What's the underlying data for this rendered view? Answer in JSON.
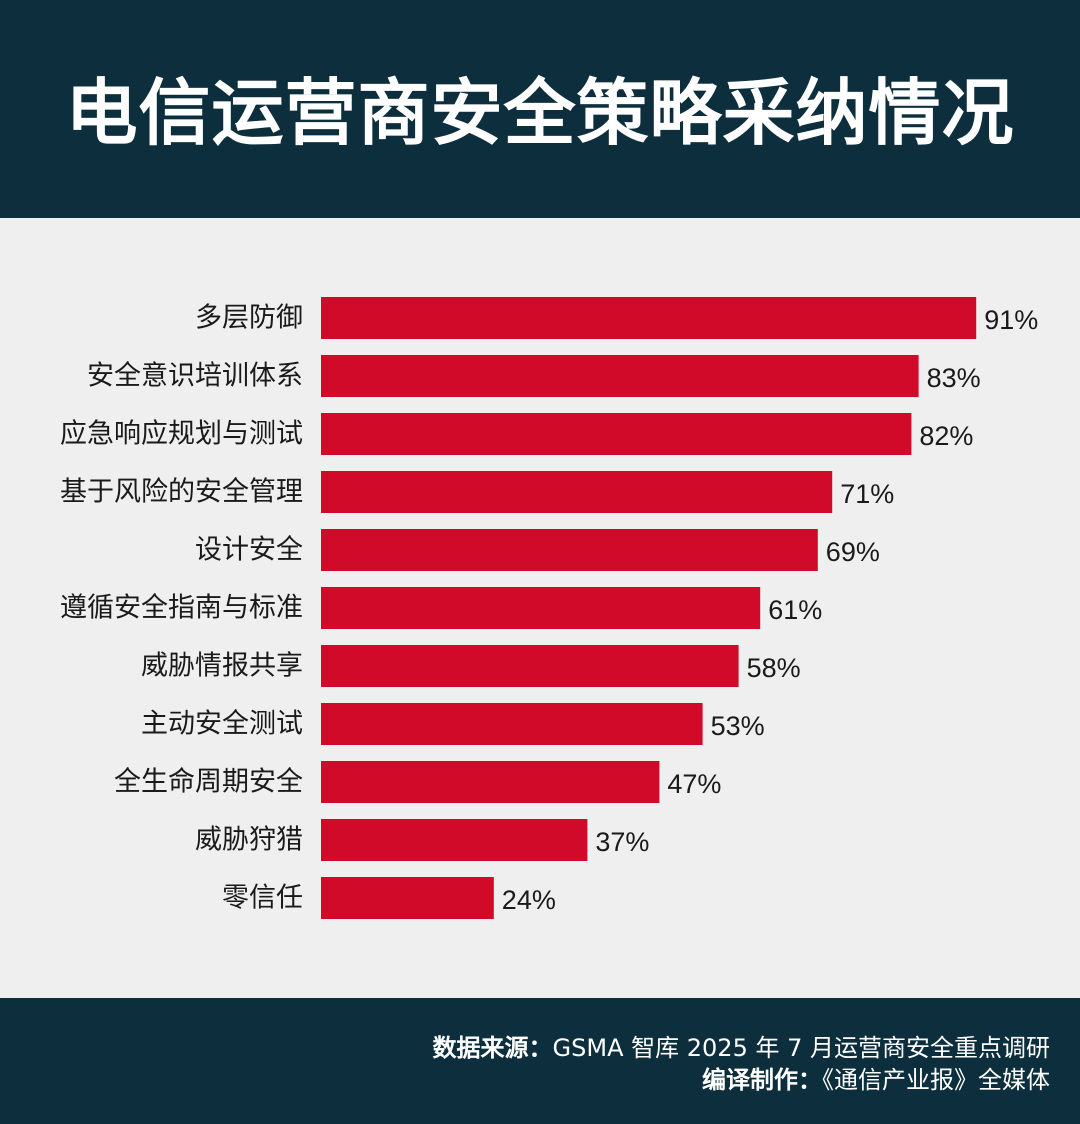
{
  "title": "电信运营商安全策略采纳情况",
  "footer": {
    "source_label": "数据来源：",
    "source_text": "GSMA 智库 2025 年 7 月运营商安全重点调研",
    "credit_label": "编译制作：",
    "credit_text": "《通信产业报》全媒体"
  },
  "colors": {
    "bar": "#d00a28",
    "header_bg": "#0d2e3c",
    "chart_bg": "#efefef"
  },
  "chart_data": {
    "type": "bar",
    "orientation": "horizontal",
    "categories": [
      "多层防御",
      "安全意识培训体系",
      "应急响应规划与测试",
      "基于风险的安全管理",
      "设计安全",
      "遵循安全指南与标准",
      "威胁情报共享",
      "主动安全测试",
      "全生命周期安全",
      "威胁狩猎",
      "零信任"
    ],
    "values": [
      91,
      83,
      82,
      71,
      69,
      61,
      58,
      53,
      47,
      37,
      24
    ],
    "value_labels": [
      "91%",
      "83%",
      "82%",
      "71%",
      "69%",
      "61%",
      "58%",
      "53%",
      "47%",
      "37%",
      "24%"
    ],
    "unit": "%",
    "xlim": [
      0,
      100
    ],
    "grid": false
  }
}
